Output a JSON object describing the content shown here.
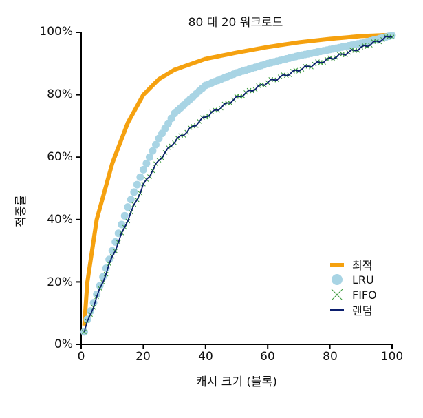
{
  "chart_data": {
    "type": "line",
    "title": "80 대 20 워크로드",
    "xlabel": "캐시 크기 (블록)",
    "ylabel": "적중률",
    "xlim": [
      0,
      100
    ],
    "ylim": [
      0,
      100
    ],
    "x_ticks": [
      "0",
      "20",
      "40",
      "60",
      "80",
      "100"
    ],
    "y_ticks": [
      "0%",
      "20%",
      "40%",
      "60%",
      "80%",
      "100%"
    ],
    "grid": false,
    "legend_position": "lower right",
    "x": [
      1,
      2,
      5,
      10,
      15,
      20,
      25,
      30,
      40,
      50,
      60,
      70,
      80,
      90,
      100
    ],
    "series": [
      {
        "name": "최적",
        "color": "#f5a10f",
        "style": "thick-line",
        "values": [
          6,
          20,
          40,
          58,
          71,
          80,
          85,
          88,
          91.5,
          93.5,
          95.3,
          96.8,
          97.9,
          98.8,
          99.2
        ]
      },
      {
        "name": "LRU",
        "color": "#a8d4e4",
        "style": "circle-markers",
        "values": [
          4,
          8,
          16,
          30,
          44,
          56,
          66,
          74,
          83,
          87,
          90,
          92.5,
          94.5,
          96.5,
          99
        ]
      },
      {
        "name": "FIFO",
        "color": "#3a9a3a",
        "style": "x-markers",
        "values": [
          4,
          7,
          15,
          28,
          40,
          51,
          59,
          65,
          73,
          79,
          84,
          88,
          91.5,
          95,
          99
        ]
      },
      {
        "name": "랜덤",
        "color": "#0b1e6e",
        "style": "thin-line",
        "values": [
          4,
          7,
          15,
          28,
          40,
          51,
          59,
          65,
          73,
          79,
          84,
          88,
          91.5,
          95,
          99
        ]
      }
    ]
  }
}
